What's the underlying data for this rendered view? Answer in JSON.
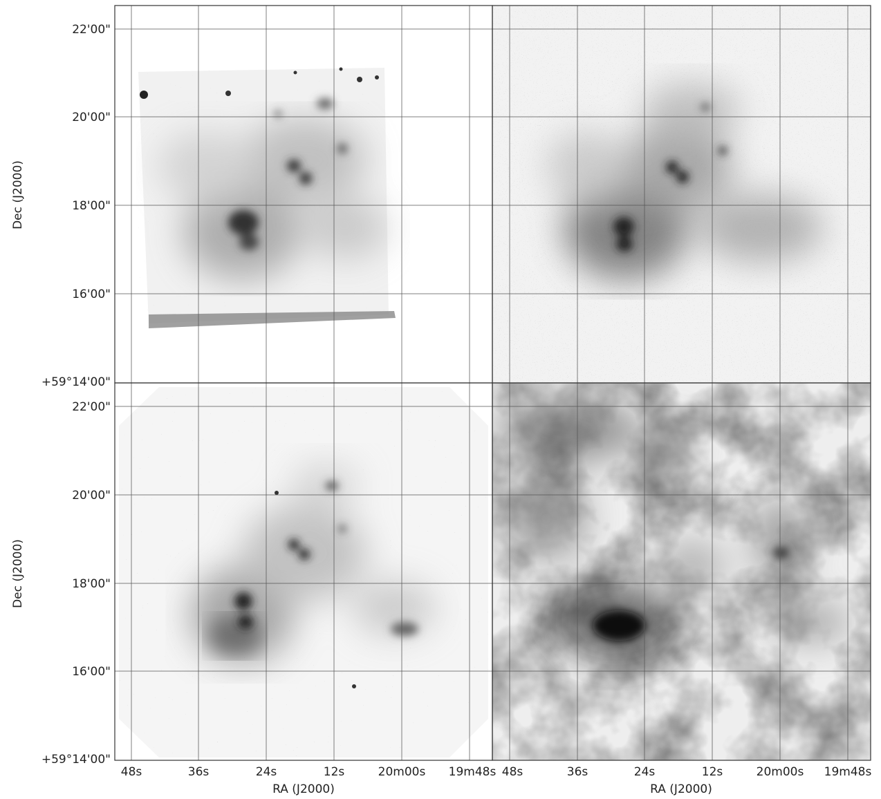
{
  "figure": {
    "dec_axis_label": "Dec (J2000)",
    "ra_axis_label": "RA (J2000)",
    "dec_ticks": [
      "22'00\"",
      "20'00\"",
      "18'00\"",
      "16'00\"",
      "+59°14'00\""
    ],
    "ra_ticks": [
      "48s",
      "36s",
      "24s",
      "12s",
      "20m00s",
      "19m48s"
    ],
    "panels": [
      {
        "id": "top-left",
        "style": "image with empty rectangular coverage"
      },
      {
        "id": "top-right",
        "style": "diffuse noisy emission"
      },
      {
        "id": "bottom-left",
        "style": "octagonal field with clumps"
      },
      {
        "id": "bottom-right",
        "style": "smooth extended emission"
      }
    ],
    "colors": {
      "background": "#ffffff",
      "ink": "#222222",
      "grid": "#555555"
    }
  }
}
